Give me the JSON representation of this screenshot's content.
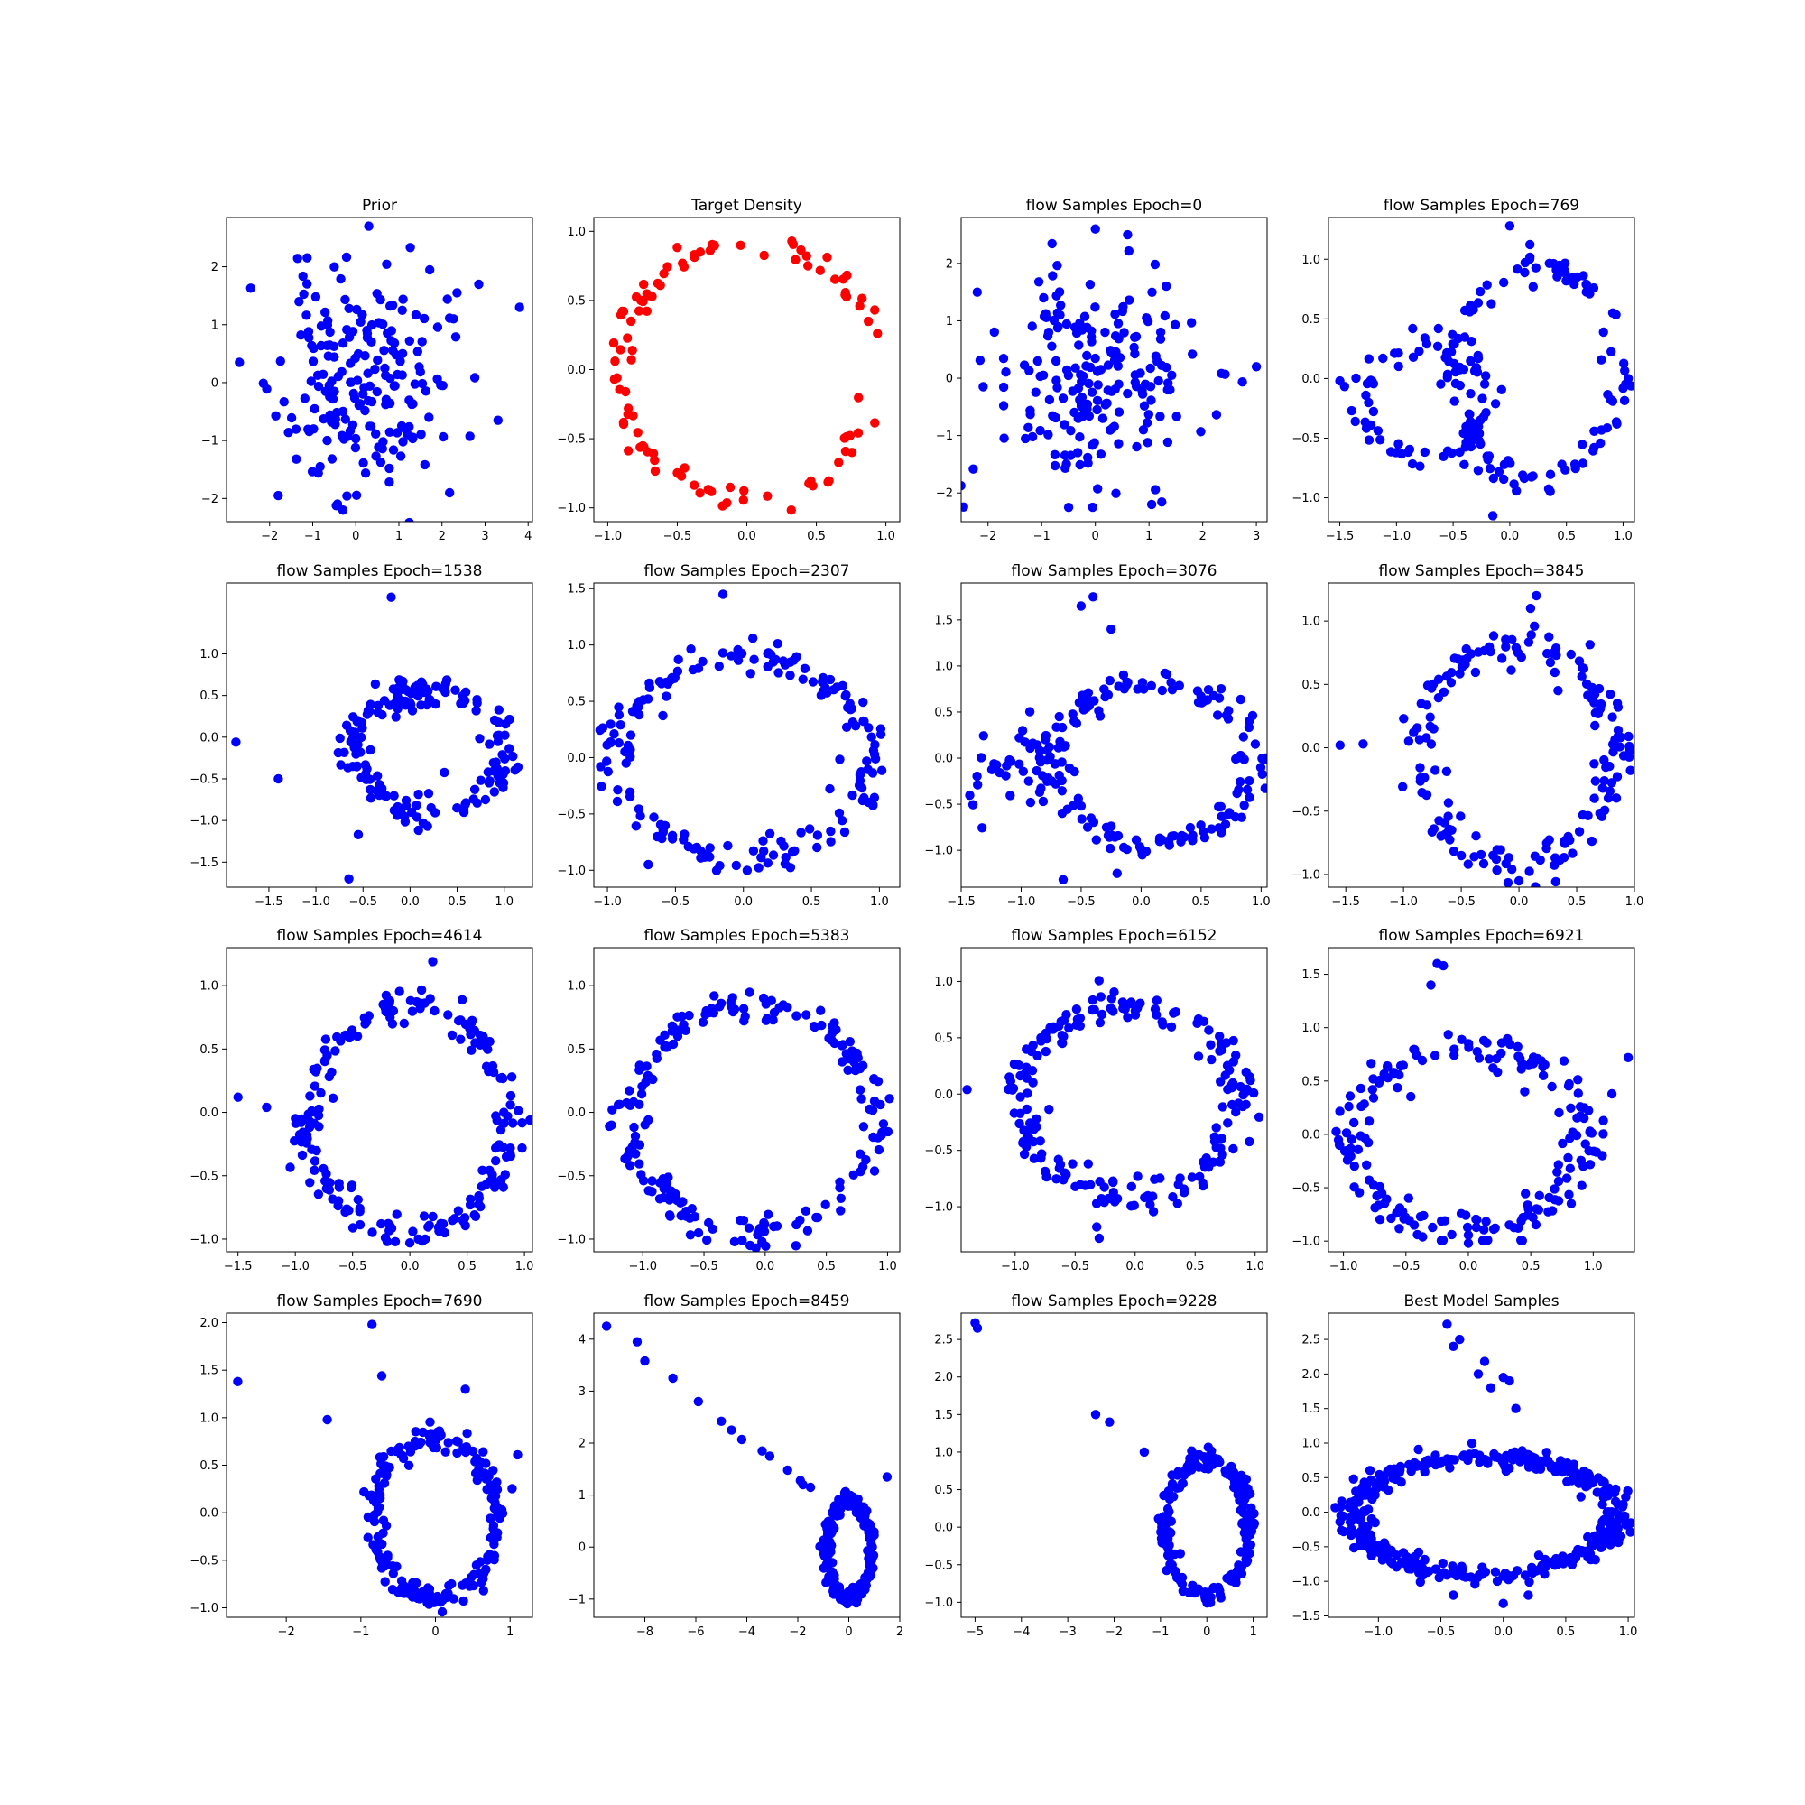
{
  "chart_data": [
    {
      "type": "scatter",
      "title": "Prior",
      "color": "#0000ff",
      "xlim": [
        -3.0,
        4.1
      ],
      "ylim": [
        -2.4,
        2.85
      ],
      "xticks": [
        -2,
        -1,
        0,
        1,
        2,
        3,
        4
      ],
      "yticks": [
        -2,
        -1,
        0,
        1,
        2
      ],
      "gen": {
        "kind": "gauss",
        "n": 200,
        "seed": 11,
        "cx": 0.1,
        "cy": 0,
        "sx": 0.95,
        "sy": 0.95
      },
      "extra": [
        [
          3.8,
          1.3
        ],
        [
          -2.7,
          0.35
        ],
        [
          0.3,
          2.7
        ],
        [
          -0.3,
          -2.2
        ],
        [
          -1.8,
          -1.95
        ],
        [
          3.3,
          -0.65
        ],
        [
          2.35,
          1.55
        ]
      ]
    },
    {
      "type": "scatter",
      "title": "Target Density",
      "color": "#ff0000",
      "xlim": [
        -1.1,
        1.1
      ],
      "ylim": [
        -1.1,
        1.1
      ],
      "xticks": [
        -1.0,
        -0.5,
        0.0,
        0.5,
        1.0
      ],
      "yticks": [
        -1.0,
        -0.5,
        0.0,
        0.5,
        1.0
      ],
      "gen": {
        "kind": "ring",
        "n": 100,
        "seed": 21,
        "cx": 0,
        "cy": 0,
        "rx": 0.93,
        "ry": 0.93,
        "jitter": 0.06
      },
      "extra": []
    },
    {
      "type": "scatter",
      "title": "flow Samples Epoch=0",
      "color": "#0000ff",
      "xlim": [
        -2.5,
        3.2
      ],
      "ylim": [
        -2.5,
        2.8
      ],
      "xticks": [
        -2,
        -1,
        0,
        1,
        2,
        3
      ],
      "yticks": [
        -2,
        -1,
        0,
        1,
        2
      ],
      "gen": {
        "kind": "gauss",
        "n": 200,
        "seed": 31,
        "cx": 0,
        "cy": 0,
        "sx": 0.95,
        "sy": 0.95
      },
      "extra": [
        [
          3.0,
          0.2
        ],
        [
          0.0,
          2.6
        ],
        [
          0.6,
          2.5
        ],
        [
          -0.05,
          -2.25
        ],
        [
          1.05,
          -2.2
        ],
        [
          -2.2,
          1.5
        ]
      ]
    },
    {
      "type": "scatter",
      "title": "flow Samples Epoch=769",
      "color": "#0000ff",
      "xlim": [
        -1.6,
        1.1
      ],
      "ylim": [
        -1.2,
        1.35
      ],
      "xticks": [
        -1.5,
        -1.0,
        -0.5,
        0.0,
        0.5,
        1.0
      ],
      "yticks": [
        -1.0,
        -0.5,
        0.0,
        0.5,
        1.0
      ],
      "gen": {
        "kind": "ring",
        "n": 120,
        "seed": 41,
        "cx": 0.25,
        "cy": 0.05,
        "rx": 0.72,
        "ry": 0.9,
        "jitter": 0.07
      },
      "gen2": {
        "kind": "ring",
        "n": 70,
        "seed": 42,
        "cx": -0.75,
        "cy": -0.2,
        "rx": 0.55,
        "ry": 0.5,
        "jitter": 0.08
      },
      "extra": [
        [
          -1.5,
          -0.02
        ],
        [
          0.0,
          1.28
        ],
        [
          -0.15,
          -1.15
        ]
      ]
    },
    {
      "type": "scatter",
      "title": "flow Samples Epoch=1538",
      "color": "#0000ff",
      "xlim": [
        -1.95,
        1.3
      ],
      "ylim": [
        -1.8,
        1.85
      ],
      "xticks": [
        -1.5,
        -1.0,
        -0.5,
        0.0,
        0.5,
        1.0
      ],
      "yticks": [
        -1.5,
        -1.0,
        -0.5,
        0.0,
        0.5,
        1.0
      ],
      "gen": {
        "kind": "ring",
        "n": 150,
        "seed": 51,
        "cx": 0.2,
        "cy": -0.15,
        "rx": 0.8,
        "ry": 0.72,
        "jitter": 0.1
      },
      "gen2": {
        "kind": "gauss",
        "n": 20,
        "seed": 52,
        "cx": 0.0,
        "cy": 0.4,
        "sx": 0.12,
        "sy": 0.08
      },
      "extra": [
        [
          -1.85,
          -0.06
        ],
        [
          -1.4,
          -0.5
        ],
        [
          -0.2,
          1.68
        ],
        [
          -0.65,
          -1.7
        ],
        [
          -0.55,
          -1.17
        ]
      ]
    },
    {
      "type": "scatter",
      "title": "flow Samples Epoch=2307",
      "color": "#0000ff",
      "xlim": [
        -1.1,
        1.15
      ],
      "ylim": [
        -1.15,
        1.55
      ],
      "xticks": [
        -1.0,
        -0.5,
        0.0,
        0.5,
        1.0
      ],
      "yticks": [
        -1.0,
        -0.5,
        0.0,
        0.5,
        1.0,
        1.5
      ],
      "gen": {
        "kind": "ring",
        "n": 180,
        "seed": 61,
        "cx": 0.0,
        "cy": 0.0,
        "rx": 0.92,
        "ry": 0.9,
        "jitter": 0.08
      },
      "extra": [
        [
          -0.15,
          1.45
        ],
        [
          -1.05,
          -0.08
        ],
        [
          -0.7,
          -0.95
        ]
      ]
    },
    {
      "type": "scatter",
      "title": "flow Samples Epoch=3076",
      "color": "#0000ff",
      "xlim": [
        -1.5,
        1.05
      ],
      "ylim": [
        -1.4,
        1.9
      ],
      "xticks": [
        -1.5,
        -1.0,
        -0.5,
        0.0,
        0.5,
        1.0
      ],
      "yticks": [
        -1.0,
        -0.5,
        0.0,
        0.5,
        1.0,
        1.5
      ],
      "gen": {
        "kind": "ring",
        "n": 150,
        "seed": 71,
        "cx": 0.1,
        "cy": -0.05,
        "rx": 0.82,
        "ry": 0.9,
        "jitter": 0.09
      },
      "gen2": {
        "kind": "gauss",
        "n": 40,
        "seed": 72,
        "cx": -1.05,
        "cy": -0.15,
        "sx": 0.25,
        "sy": 0.3
      },
      "extra": [
        [
          -0.4,
          1.75
        ],
        [
          -0.5,
          1.65
        ],
        [
          -0.25,
          1.4
        ],
        [
          -0.65,
          -1.32
        ],
        [
          -0.2,
          -1.25
        ]
      ]
    },
    {
      "type": "scatter",
      "title": "flow Samples Epoch=3845",
      "color": "#0000ff",
      "xlim": [
        -1.65,
        1.0
      ],
      "ylim": [
        -1.1,
        1.3
      ],
      "xticks": [
        -1.5,
        -1.0,
        -0.5,
        0.0,
        0.5,
        1.0
      ],
      "yticks": [
        -1.0,
        -0.5,
        0.0,
        0.5,
        1.0
      ],
      "gen": {
        "kind": "ring",
        "n": 170,
        "seed": 81,
        "cx": 0.0,
        "cy": -0.05,
        "rx": 0.85,
        "ry": 0.85,
        "jitter": 0.1
      },
      "extra": [
        [
          -1.55,
          0.02
        ],
        [
          -1.35,
          0.03
        ],
        [
          0.15,
          1.2
        ],
        [
          0.1,
          1.1
        ],
        [
          0.0,
          -1.05
        ]
      ]
    },
    {
      "type": "scatter",
      "title": "flow Samples Epoch=4614",
      "color": "#0000ff",
      "xlim": [
        -1.6,
        1.07
      ],
      "ylim": [
        -1.1,
        1.3
      ],
      "xticks": [
        -1.5,
        -1.0,
        -0.5,
        0.0,
        0.5,
        1.0
      ],
      "yticks": [
        -1.0,
        -0.5,
        0.0,
        0.5,
        1.0
      ],
      "gen": {
        "kind": "ring",
        "n": 200,
        "seed": 91,
        "cx": 0.0,
        "cy": -0.05,
        "rx": 0.9,
        "ry": 0.88,
        "jitter": 0.08
      },
      "extra": [
        [
          -1.5,
          0.12
        ],
        [
          -1.25,
          0.04
        ],
        [
          0.2,
          1.19
        ],
        [
          0.0,
          -1.03
        ]
      ]
    },
    {
      "type": "scatter",
      "title": "flow Samples Epoch=5383",
      "color": "#0000ff",
      "xlim": [
        -1.4,
        1.1
      ],
      "ylim": [
        -1.1,
        1.3
      ],
      "xticks": [
        -1.0,
        -0.5,
        0.0,
        0.5,
        1.0
      ],
      "yticks": [
        -1.0,
        -0.5,
        0.0,
        0.5,
        1.0
      ],
      "gen": {
        "kind": "ring",
        "n": 200,
        "seed": 101,
        "cx": -0.1,
        "cy": -0.05,
        "rx": 1.0,
        "ry": 0.9,
        "jitter": 0.08
      },
      "extra": [
        [
          -1.25,
          0.02
        ],
        [
          -1.2,
          0.06
        ],
        [
          -0.25,
          -1.02
        ]
      ]
    },
    {
      "type": "scatter",
      "title": "flow Samples Epoch=6152",
      "color": "#0000ff",
      "xlim": [
        -1.45,
        1.1
      ],
      "ylim": [
        -1.4,
        1.3
      ],
      "xticks": [
        -1.0,
        -0.5,
        0.0,
        0.5,
        1.0
      ],
      "yticks": [
        -1.0,
        -0.5,
        0.0,
        0.5,
        1.0
      ],
      "gen": {
        "kind": "ring",
        "n": 200,
        "seed": 111,
        "cx": -0.05,
        "cy": -0.05,
        "rx": 0.9,
        "ry": 0.85,
        "jitter": 0.09
      },
      "extra": [
        [
          -1.4,
          0.04
        ],
        [
          -0.3,
          -1.28
        ],
        [
          -0.32,
          -1.18
        ]
      ]
    },
    {
      "type": "scatter",
      "title": "flow Samples Epoch=6921",
      "color": "#0000ff",
      "xlim": [
        -1.12,
        1.33
      ],
      "ylim": [
        -1.1,
        1.75
      ],
      "xticks": [
        -1.0,
        -0.5,
        0.0,
        0.5,
        1.0
      ],
      "yticks": [
        -1.0,
        -0.5,
        0.0,
        0.5,
        1.0,
        1.5
      ],
      "gen": {
        "kind": "ring",
        "n": 190,
        "seed": 121,
        "cx": 0.0,
        "cy": -0.05,
        "rx": 0.95,
        "ry": 0.85,
        "jitter": 0.1
      },
      "extra": [
        [
          -0.25,
          1.6
        ],
        [
          -0.2,
          1.58
        ],
        [
          -0.3,
          1.4
        ],
        [
          1.28,
          0.72
        ],
        [
          1.15,
          0.38
        ],
        [
          0.0,
          -1.02
        ]
      ]
    },
    {
      "type": "scatter",
      "title": "flow Samples Epoch=7690",
      "color": "#0000ff",
      "xlim": [
        -2.8,
        1.3
      ],
      "ylim": [
        -1.1,
        2.1
      ],
      "xticks": [
        -2,
        -1,
        0,
        1
      ],
      "yticks": [
        -1.0,
        -0.5,
        0.0,
        0.5,
        1.0,
        1.5,
        2.0
      ],
      "gen": {
        "kind": "ring",
        "n": 200,
        "seed": 131,
        "cx": 0.0,
        "cy": -0.05,
        "rx": 0.85,
        "ry": 0.85,
        "jitter": 0.08
      },
      "extra": [
        [
          -2.65,
          1.38
        ],
        [
          -1.45,
          0.98
        ],
        [
          -0.85,
          1.98
        ],
        [
          -0.72,
          1.44
        ],
        [
          0.4,
          1.3
        ],
        [
          1.1,
          0.61
        ]
      ]
    },
    {
      "type": "scatter",
      "title": "flow Samples Epoch=8459",
      "color": "#0000ff",
      "xlim": [
        -10.0,
        2.0
      ],
      "ylim": [
        -1.35,
        4.5
      ],
      "xticks": [
        -8,
        -6,
        -4,
        -2,
        0,
        2
      ],
      "yticks": [
        -1,
        0,
        1,
        2,
        3,
        4
      ],
      "gen": {
        "kind": "ring",
        "n": 210,
        "seed": 141,
        "cx": 0.0,
        "cy": -0.05,
        "rx": 0.85,
        "ry": 0.95,
        "jitter": 0.1
      },
      "extra": [
        [
          -9.5,
          4.25
        ],
        [
          -8.3,
          3.95
        ],
        [
          -8.0,
          3.58
        ],
        [
          -6.9,
          3.25
        ],
        [
          -5.9,
          2.8
        ],
        [
          -5.0,
          2.42
        ],
        [
          -4.6,
          2.25
        ],
        [
          -4.2,
          2.07
        ],
        [
          -3.4,
          1.85
        ],
        [
          -3.1,
          1.75
        ],
        [
          -2.4,
          1.48
        ],
        [
          -1.9,
          1.28
        ],
        [
          -1.8,
          1.2
        ],
        [
          -1.5,
          1.15
        ],
        [
          1.5,
          1.35
        ]
      ]
    },
    {
      "type": "scatter",
      "title": "flow Samples Epoch=9228",
      "color": "#0000ff",
      "xlim": [
        -5.3,
        1.3
      ],
      "ylim": [
        -1.2,
        2.85
      ],
      "xticks": [
        -5,
        -4,
        -3,
        -2,
        -1,
        0,
        1
      ],
      "yticks": [
        -1.0,
        -0.5,
        0.0,
        0.5,
        1.0,
        1.5,
        2.0,
        2.5
      ],
      "gen": {
        "kind": "ring",
        "n": 200,
        "seed": 151,
        "cx": 0.0,
        "cy": 0.0,
        "rx": 0.9,
        "ry": 0.92,
        "jitter": 0.08
      },
      "extra": [
        [
          -5.0,
          2.72
        ],
        [
          -4.95,
          2.65
        ],
        [
          -2.4,
          1.5
        ],
        [
          -2.1,
          1.4
        ],
        [
          -1.35,
          1.0
        ]
      ]
    },
    {
      "type": "scatter",
      "title": "Best Model Samples",
      "color": "#0000ff",
      "xlim": [
        -1.4,
        1.05
      ],
      "ylim": [
        -1.52,
        2.88
      ],
      "xticks": [
        -1.0,
        -0.5,
        0.0,
        0.5,
        1.0
      ],
      "yticks": [
        -1.5,
        -1.0,
        -0.5,
        0.0,
        0.5,
        1.0,
        1.5,
        2.0,
        2.5
      ],
      "gen": {
        "kind": "ring",
        "n": 420,
        "seed": 161,
        "cx": -0.15,
        "cy": -0.05,
        "rx": 1.05,
        "ry": 0.85,
        "jitter": 0.08
      },
      "extra": [
        [
          -0.45,
          2.72
        ],
        [
          -0.35,
          2.5
        ],
        [
          -0.4,
          2.4
        ],
        [
          -0.15,
          2.18
        ],
        [
          -0.2,
          2.0
        ],
        [
          0.0,
          1.95
        ],
        [
          -0.1,
          1.8
        ],
        [
          0.1,
          1.5
        ],
        [
          0.05,
          1.9
        ],
        [
          -1.3,
          -0.05
        ],
        [
          -1.2,
          0.15
        ],
        [
          -1.2,
          0.48
        ],
        [
          -0.4,
          -1.2
        ],
        [
          0.0,
          -1.32
        ],
        [
          0.2,
          -1.2
        ]
      ]
    }
  ]
}
